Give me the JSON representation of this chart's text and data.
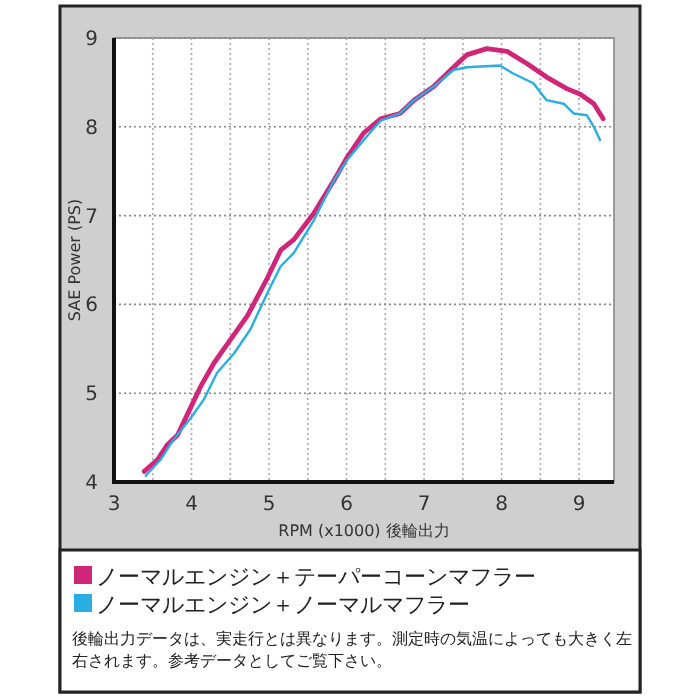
{
  "chart_data": {
    "type": "line",
    "xlabel": "RPM (x1000) 後輪出力",
    "ylabel": "SAE Power (PS)",
    "xlim": [
      3,
      9.45
    ],
    "ylim": [
      4,
      9
    ],
    "xticks": [
      3,
      {
        "value": 3.5,
        "label": null
      },
      4,
      {
        "value": 4.5,
        "label": null
      },
      5,
      {
        "value": 5.5,
        "label": null
      },
      6,
      {
        "value": 6.5,
        "label": null
      },
      7,
      {
        "value": 7.5,
        "label": null
      },
      8,
      {
        "value": 8.5,
        "label": null
      },
      9
    ],
    "yticks": [
      4,
      5,
      6,
      7,
      8,
      9
    ],
    "grid": true,
    "legend": "bottom",
    "annotations": [
      "後輪出力データは、実走行とは異なります。測定時の気温によっても大きく左右されます。参考データとしてご覧下さい。"
    ],
    "series": [
      {
        "name": "ノーマルエンジン＋テーパーコーンマフラー",
        "color": "#d0267a",
        "x": [
          3.39,
          3.56,
          3.69,
          3.82,
          3.99,
          4.12,
          4.29,
          4.5,
          4.72,
          4.98,
          5.15,
          5.32,
          5.58,
          5.84,
          6.01,
          6.22,
          6.44,
          6.69,
          6.87,
          7.12,
          7.38,
          7.55,
          7.81,
          8.07,
          8.33,
          8.58,
          8.84,
          9.01,
          9.19,
          9.31
        ],
        "values": [
          4.12,
          4.25,
          4.42,
          4.53,
          4.84,
          5.08,
          5.34,
          5.6,
          5.87,
          6.3,
          6.61,
          6.73,
          7.03,
          7.4,
          7.66,
          7.93,
          8.09,
          8.15,
          8.3,
          8.45,
          8.67,
          8.81,
          8.88,
          8.85,
          8.71,
          8.56,
          8.43,
          8.37,
          8.26,
          8.09
        ]
      },
      {
        "name": "ノーマルエンジン＋ノーマルマフラー",
        "color": "#2aaee0",
        "x": [
          3.41,
          3.6,
          3.77,
          3.99,
          4.16,
          4.33,
          4.55,
          4.76,
          4.98,
          5.15,
          5.32,
          5.58,
          5.84,
          6.01,
          6.22,
          6.44,
          6.69,
          6.87,
          7.12,
          7.38,
          7.55,
          7.98,
          8.15,
          8.41,
          8.58,
          8.8,
          8.93,
          9.1,
          9.19,
          9.27
        ],
        "values": [
          4.07,
          4.25,
          4.48,
          4.72,
          4.93,
          5.23,
          5.45,
          5.72,
          6.13,
          6.43,
          6.58,
          6.95,
          7.4,
          7.63,
          7.85,
          8.07,
          8.15,
          8.3,
          8.45,
          8.64,
          8.67,
          8.69,
          8.6,
          8.49,
          8.3,
          8.26,
          8.15,
          8.13,
          8,
          7.85
        ]
      }
    ]
  }
}
